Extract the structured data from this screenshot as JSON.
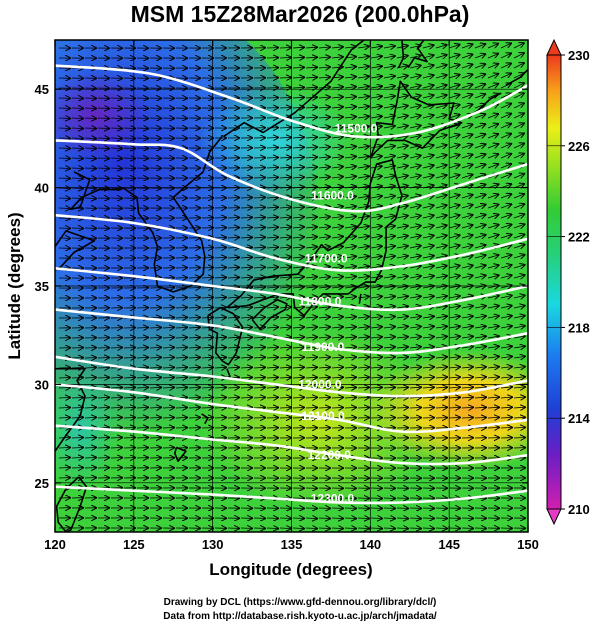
{
  "title": "MSM 15Z28Mar2026 (200.0hPa)",
  "xlabel": "Longitude (degrees)",
  "ylabel": "Latitude  (degrees)",
  "credits": [
    "Drawing by DCL (https://www.gfd-dennou.org/library/dcl/)",
    "Data from http://database.rish.kyoto-u.ac.jp/arch/jmadata/"
  ],
  "map": {
    "xlim": [
      120,
      150
    ],
    "ylim": [
      22.5,
      47.5
    ],
    "x_ticks": [
      "120",
      "125",
      "130",
      "135",
      "140",
      "145",
      "150"
    ],
    "y_ticks": [
      "25",
      "30",
      "35",
      "40",
      "45"
    ],
    "grid_lon": [
      125,
      130,
      135,
      140,
      145
    ],
    "grid_lat": [
      25,
      30,
      35,
      40,
      45
    ]
  },
  "colorbar": {
    "min": 210,
    "max": 230,
    "tick_labels": [
      "210",
      "214",
      "218",
      "222",
      "226",
      "230"
    ]
  },
  "contours": [
    {
      "label": "11500.0",
      "label_lon": 139.1,
      "label_lat": 43.0,
      "points": [
        [
          120,
          46.2
        ],
        [
          126,
          45.8
        ],
        [
          131,
          44.6
        ],
        [
          135,
          43.4
        ],
        [
          139,
          42.6
        ],
        [
          143,
          42.8
        ],
        [
          147,
          43.9
        ],
        [
          150,
          45.2
        ]
      ]
    },
    {
      "label": "11600.0",
      "label_lon": 137.6,
      "label_lat": 39.6,
      "points": [
        [
          120,
          42.4
        ],
        [
          125,
          42.2
        ],
        [
          128,
          42.0
        ],
        [
          131,
          40.6
        ],
        [
          135,
          39.4
        ],
        [
          139,
          38.8
        ],
        [
          142,
          39.2
        ],
        [
          146,
          40.2
        ],
        [
          150,
          41.2
        ]
      ]
    },
    {
      "label": "11700.0",
      "label_lon": 137.2,
      "label_lat": 36.4,
      "points": [
        [
          120,
          38.6
        ],
        [
          125,
          38.2
        ],
        [
          130,
          37.4
        ],
        [
          134,
          36.4
        ],
        [
          138,
          35.8
        ],
        [
          142,
          36.0
        ],
        [
          146,
          36.6
        ],
        [
          150,
          37.4
        ]
      ]
    },
    {
      "label": "11800.0",
      "label_lon": 136.8,
      "label_lat": 34.2,
      "points": [
        [
          120,
          35.9
        ],
        [
          125,
          35.5
        ],
        [
          130,
          35.0
        ],
        [
          134,
          34.6
        ],
        [
          138,
          34.0
        ],
        [
          142,
          33.8
        ],
        [
          146,
          34.3
        ],
        [
          150,
          35.0
        ]
      ]
    },
    {
      "label": "11900.0",
      "label_lon": 137.0,
      "label_lat": 31.9,
      "points": [
        [
          120,
          33.8
        ],
        [
          125,
          33.4
        ],
        [
          130,
          33.0
        ],
        [
          134,
          32.4
        ],
        [
          138,
          31.8
        ],
        [
          142,
          31.6
        ],
        [
          146,
          32.0
        ],
        [
          150,
          32.6
        ]
      ]
    },
    {
      "label": "12000.0",
      "label_lon": 136.8,
      "label_lat": 30.0,
      "points": [
        [
          120,
          31.4
        ],
        [
          125,
          30.8
        ],
        [
          130,
          30.4
        ],
        [
          134,
          30.0
        ],
        [
          138,
          29.6
        ],
        [
          142,
          29.4
        ],
        [
          146,
          29.6
        ],
        [
          150,
          30.2
        ]
      ]
    },
    {
      "label": "12100.0",
      "label_lon": 137.0,
      "label_lat": 28.4,
      "points": [
        [
          120,
          30.0
        ],
        [
          125,
          29.6
        ],
        [
          130,
          29.0
        ],
        [
          134,
          28.6
        ],
        [
          138,
          28.2
        ],
        [
          142,
          27.6
        ],
        [
          146,
          27.8
        ],
        [
          150,
          28.2
        ]
      ]
    },
    {
      "label": "12200.0",
      "label_lon": 137.4,
      "label_lat": 26.4,
      "points": [
        [
          120,
          27.9
        ],
        [
          125,
          27.6
        ],
        [
          130,
          27.2
        ],
        [
          134,
          26.9
        ],
        [
          138,
          26.4
        ],
        [
          142,
          26.0
        ],
        [
          146,
          26.0
        ],
        [
          150,
          26.4
        ]
      ]
    },
    {
      "label": "12300.0",
      "label_lon": 137.6,
      "label_lat": 24.2,
      "points": [
        [
          120,
          24.8
        ],
        [
          125,
          24.6
        ],
        [
          130,
          24.4
        ],
        [
          134,
          24.2
        ],
        [
          138,
          24.0
        ],
        [
          142,
          24.0
        ],
        [
          146,
          24.2
        ],
        [
          150,
          24.6
        ]
      ]
    }
  ],
  "coastlines": [
    {
      "name": "honshu",
      "points": [
        [
          130.9,
          33.9
        ],
        [
          131.8,
          34.5
        ],
        [
          132.6,
          35.3
        ],
        [
          133.8,
          35.5
        ],
        [
          135.4,
          35.6
        ],
        [
          136.2,
          36.3
        ],
        [
          136.9,
          37.1
        ],
        [
          137.3,
          36.8
        ],
        [
          138.3,
          37.2
        ],
        [
          139.4,
          38.2
        ],
        [
          139.9,
          39.3
        ],
        [
          140.0,
          40.2
        ],
        [
          140.4,
          41.2
        ],
        [
          141.4,
          41.4
        ],
        [
          141.6,
          40.6
        ],
        [
          142.0,
          39.6
        ],
        [
          141.6,
          38.4
        ],
        [
          141.0,
          38.0
        ],
        [
          141.0,
          36.8
        ],
        [
          140.7,
          35.8
        ],
        [
          140.3,
          35.2
        ],
        [
          139.7,
          35.2
        ],
        [
          139.1,
          34.9
        ],
        [
          138.6,
          34.6
        ],
        [
          137.8,
          34.6
        ],
        [
          137.0,
          34.6
        ],
        [
          136.5,
          34.2
        ],
        [
          135.8,
          33.5
        ],
        [
          135.2,
          33.9
        ],
        [
          135.1,
          34.6
        ],
        [
          134.2,
          34.6
        ],
        [
          133.2,
          34.3
        ],
        [
          132.2,
          34.0
        ],
        [
          131.0,
          33.9
        ]
      ]
    },
    {
      "name": "hokkaido",
      "points": [
        [
          140.0,
          41.5
        ],
        [
          140.5,
          42.6
        ],
        [
          140.4,
          43.3
        ],
        [
          141.4,
          43.2
        ],
        [
          141.7,
          44.4
        ],
        [
          141.9,
          45.4
        ],
        [
          142.6,
          44.6
        ],
        [
          143.7,
          44.2
        ],
        [
          145.3,
          44.3
        ],
        [
          145.0,
          43.5
        ],
        [
          145.8,
          43.3
        ],
        [
          144.4,
          42.9
        ],
        [
          143.3,
          42.0
        ],
        [
          142.2,
          42.4
        ],
        [
          141.1,
          42.4
        ],
        [
          140.3,
          41.8
        ],
        [
          140.0,
          41.5
        ]
      ]
    },
    {
      "name": "kyushu",
      "points": [
        [
          129.7,
          33.5
        ],
        [
          130.5,
          33.9
        ],
        [
          131.3,
          33.6
        ],
        [
          131.9,
          32.9
        ],
        [
          131.5,
          31.6
        ],
        [
          131.0,
          31.0
        ],
        [
          130.6,
          31.2
        ],
        [
          130.2,
          31.6
        ],
        [
          130.3,
          32.6
        ],
        [
          129.8,
          32.8
        ],
        [
          129.7,
          33.5
        ]
      ]
    },
    {
      "name": "shikoku",
      "points": [
        [
          132.5,
          33.3
        ],
        [
          133.3,
          33.9
        ],
        [
          134.1,
          34.3
        ],
        [
          134.7,
          34.1
        ],
        [
          134.6,
          33.8
        ],
        [
          133.7,
          33.4
        ],
        [
          133.0,
          32.8
        ],
        [
          132.5,
          33.3
        ]
      ]
    },
    {
      "name": "korea",
      "points": [
        [
          124.3,
          40.0
        ],
        [
          125.2,
          39.5
        ],
        [
          125.3,
          38.7
        ],
        [
          126.2,
          37.7
        ],
        [
          126.5,
          37.0
        ],
        [
          126.3,
          36.1
        ],
        [
          126.5,
          35.0
        ],
        [
          127.5,
          34.7
        ],
        [
          128.6,
          35.0
        ],
        [
          129.4,
          35.6
        ],
        [
          129.5,
          36.5
        ],
        [
          129.3,
          37.3
        ],
        [
          128.5,
          38.3
        ],
        [
          127.5,
          39.5
        ],
        [
          128.2,
          40.0
        ],
        [
          129.4,
          40.8
        ],
        [
          129.8,
          41.8
        ],
        [
          130.6,
          42.6
        ]
      ]
    },
    {
      "name": "china-coast",
      "points": [
        [
          121.2,
          40.8
        ],
        [
          122.2,
          40.4
        ],
        [
          121.6,
          39.0
        ],
        [
          121.0,
          38.9
        ],
        [
          121.7,
          39.5
        ],
        [
          122.8,
          39.9
        ],
        [
          124.2,
          39.9
        ]
      ]
    },
    {
      "name": "shandong",
      "points": [
        [
          120.0,
          37.0
        ],
        [
          120.7,
          37.8
        ],
        [
          122.5,
          37.3
        ],
        [
          121.2,
          36.7
        ],
        [
          120.4,
          36.0
        ],
        [
          120.0,
          35.8
        ]
      ]
    },
    {
      "name": "china-south",
      "points": [
        [
          120.0,
          30.8
        ],
        [
          121.9,
          30.8
        ],
        [
          121.4,
          30.2
        ],
        [
          121.9,
          29.4
        ],
        [
          121.6,
          28.4
        ],
        [
          120.6,
          27.3
        ],
        [
          120.0,
          26.6
        ]
      ]
    },
    {
      "name": "taiwan",
      "points": [
        [
          121.5,
          25.3
        ],
        [
          122.0,
          24.8
        ],
        [
          121.6,
          23.8
        ],
        [
          121.0,
          22.6
        ],
        [
          120.7,
          22.5
        ],
        [
          120.2,
          23.0
        ],
        [
          120.1,
          23.8
        ],
        [
          120.7,
          24.7
        ],
        [
          121.5,
          25.3
        ]
      ]
    },
    {
      "name": "russia-coast",
      "points": [
        [
          130.7,
          42.6
        ],
        [
          132.0,
          43.3
        ],
        [
          133.2,
          42.8
        ],
        [
          135.2,
          43.8
        ],
        [
          137.5,
          45.4
        ],
        [
          138.8,
          47.0
        ],
        [
          139.6,
          47.5
        ]
      ]
    },
    {
      "name": "sakhalin",
      "points": [
        [
          141.8,
          46.1
        ],
        [
          142.1,
          46.6
        ],
        [
          142.0,
          47.5
        ]
      ]
    },
    {
      "name": "sakhalin-east",
      "points": [
        [
          143.4,
          47.5
        ],
        [
          143.0,
          47.1
        ],
        [
          143.6,
          46.4
        ],
        [
          142.8,
          46.6
        ],
        [
          142.4,
          46.1
        ]
      ]
    },
    {
      "name": "kuril",
      "points": [
        [
          145.9,
          43.5
        ],
        [
          146.8,
          43.9
        ],
        [
          147.6,
          44.5
        ],
        [
          148.3,
          44.8
        ]
      ]
    },
    {
      "name": "kuril-north",
      "points": [
        [
          148.6,
          45.2
        ],
        [
          149.5,
          45.6
        ],
        [
          150.0,
          46.0
        ]
      ]
    },
    {
      "name": "izu-north",
      "points": [
        [
          139.4,
          34.6
        ],
        [
          139.3,
          34.1
        ]
      ]
    },
    {
      "name": "okinawa",
      "points": [
        [
          127.7,
          26.8
        ],
        [
          128.3,
          26.6
        ],
        [
          127.8,
          26.1
        ],
        [
          127.6,
          26.5
        ],
        [
          127.7,
          26.8
        ]
      ]
    },
    {
      "name": "amami",
      "points": [
        [
          129.3,
          28.5
        ],
        [
          129.7,
          28.3
        ],
        [
          129.5,
          28.0
        ]
      ]
    },
    {
      "name": "tanegashima",
      "points": [
        [
          130.9,
          30.8
        ],
        [
          131.1,
          30.4
        ],
        [
          130.8,
          30.3
        ]
      ]
    }
  ]
}
